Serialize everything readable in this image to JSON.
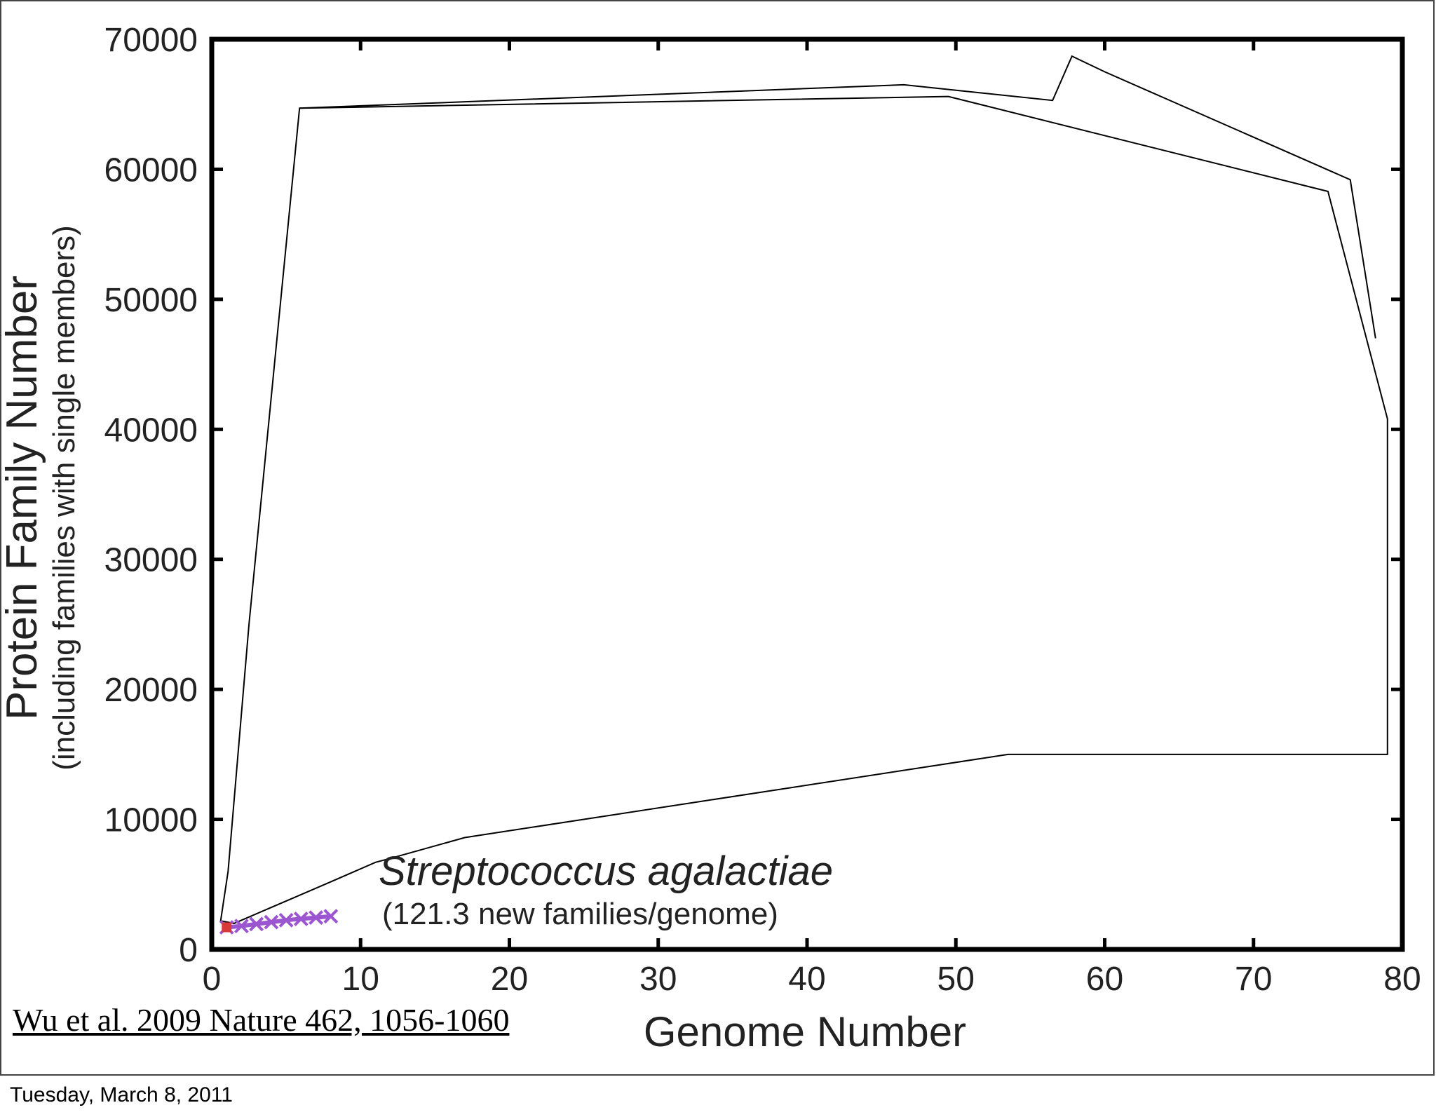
{
  "chart_data": {
    "type": "line",
    "title": "",
    "xlabel": "Genome Number",
    "ylabel": "Protein Family Number",
    "ylabel_sub": "(including families with single members)",
    "xlim": [
      0,
      80
    ],
    "ylim": [
      0,
      70000
    ],
    "x_ticks": [
      0,
      10,
      20,
      30,
      40,
      50,
      60,
      70,
      80
    ],
    "y_ticks": [
      0,
      10000,
      20000,
      30000,
      40000,
      50000,
      60000,
      70000
    ],
    "x_tick_labels": [
      "0",
      "10",
      "20",
      "30",
      "40",
      "50",
      "60",
      "70",
      "80"
    ],
    "y_tick_labels": [
      "0",
      "10000",
      "20000",
      "30000",
      "40000",
      "50000",
      "60000",
      "70000"
    ],
    "grid": false,
    "outline": {
      "upper": [
        [
          0.6,
          2200
        ],
        [
          1.1,
          6000
        ],
        [
          2.5,
          25000
        ],
        [
          5.9,
          64700
        ],
        [
          49.5,
          65600
        ],
        [
          75,
          58300
        ],
        [
          79,
          40800
        ],
        [
          79,
          15000
        ],
        [
          53.5,
          15000
        ],
        [
          17,
          8600
        ],
        [
          12,
          7000
        ],
        [
          11,
          6700
        ],
        [
          8,
          5200
        ],
        [
          1.5,
          2000
        ]
      ],
      "outer": [
        [
          5.9,
          64700
        ],
        [
          46.5,
          66500
        ],
        [
          56.5,
          65300
        ],
        [
          57.8,
          68700
        ],
        [
          60,
          67500
        ],
        [
          76.5,
          59200
        ],
        [
          78.2,
          47000
        ]
      ]
    },
    "species_points": {
      "color": "#9b55d0",
      "x": [
        1,
        2,
        3,
        4,
        5,
        6,
        7,
        8
      ],
      "y": [
        1700,
        1800,
        1950,
        2100,
        2250,
        2350,
        2450,
        2550
      ]
    },
    "reference_point": {
      "x": 1,
      "y": 1700,
      "color": "#d83a3a"
    },
    "annotation": {
      "species": "Streptococcus agalactiae",
      "rate": "(121.3 new families/genome)"
    }
  },
  "citation": "Wu et al. 2009 Nature 462, 1056-1060",
  "slide_date": "Tuesday, March 8, 2011"
}
